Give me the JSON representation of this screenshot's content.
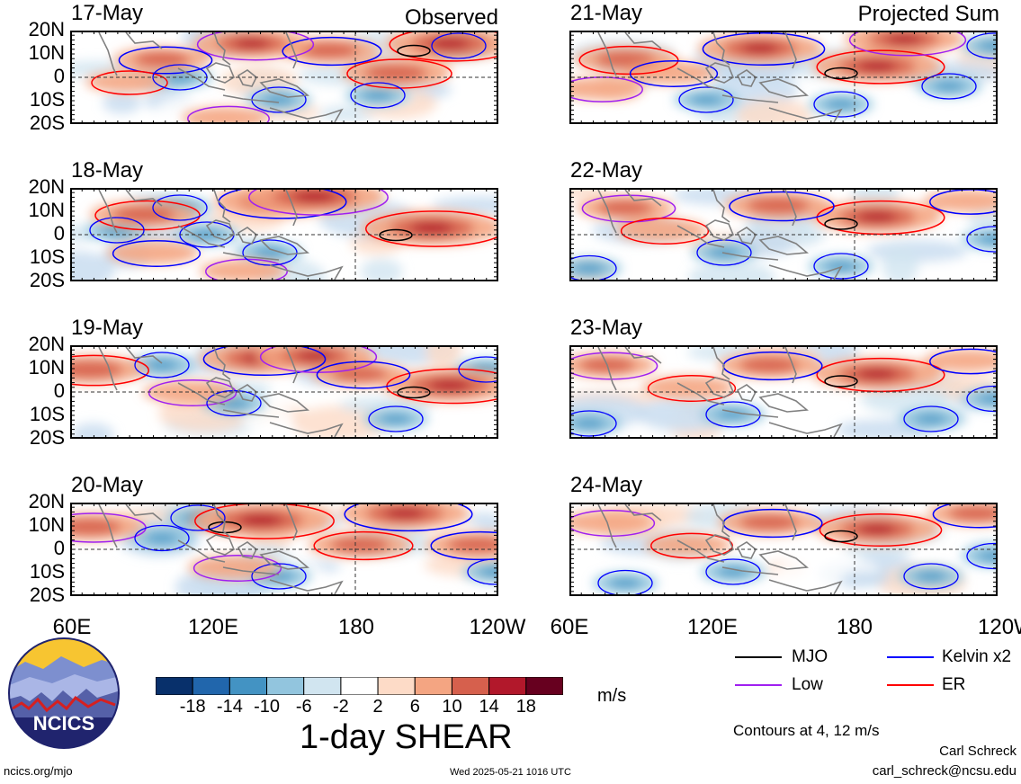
{
  "observed_label": "Observed",
  "projected_label": "Projected Sum",
  "panels": [
    {
      "date": "17-May",
      "col": 0,
      "row": 0,
      "centers": [
        [
          420,
          15,
          14
        ],
        [
          285,
          12,
          9
        ],
        [
          200,
          15,
          12
        ],
        [
          360,
          2,
          10
        ],
        [
          100,
          8,
          8
        ],
        [
          170,
          -18,
          6
        ],
        [
          60,
          -2,
          5
        ]
      ],
      "negs": [
        [
          430,
          14
        ],
        [
          120,
          0
        ],
        [
          230,
          -10
        ],
        [
          340,
          -8
        ]
      ]
    },
    {
      "date": "18-May",
      "col": 0,
      "row": 1,
      "centers": [
        [
          400,
          3,
          16
        ],
        [
          230,
          15,
          14
        ],
        [
          270,
          17,
          16
        ],
        [
          80,
          9,
          10
        ],
        [
          90,
          -8,
          7
        ],
        [
          190,
          -16,
          6
        ]
      ],
      "negs": [
        [
          120,
          12
        ],
        [
          150,
          0
        ],
        [
          220,
          -8
        ],
        [
          50,
          2
        ]
      ]
    },
    {
      "date": "19-May",
      "col": 0,
      "row": 2,
      "centers": [
        [
          420,
          3,
          15
        ],
        [
          210,
          15,
          13
        ],
        [
          270,
          16,
          12
        ],
        [
          20,
          10,
          11
        ],
        [
          320,
          8,
          8
        ],
        [
          130,
          0,
          7
        ]
      ],
      "negs": [
        [
          100,
          12
        ],
        [
          180,
          -5
        ],
        [
          360,
          -12
        ],
        [
          460,
          10
        ]
      ]
    },
    {
      "date": "20-May",
      "col": 0,
      "row": 3,
      "centers": [
        [
          210,
          13,
          16
        ],
        [
          370,
          16,
          14
        ],
        [
          20,
          10,
          10
        ],
        [
          320,
          2,
          9
        ],
        [
          450,
          2,
          9
        ],
        [
          180,
          -8,
          7
        ]
      ],
      "negs": [
        [
          100,
          5
        ],
        [
          230,
          -12
        ],
        [
          470,
          -10
        ],
        [
          140,
          14
        ]
      ]
    },
    {
      "date": "21-May",
      "col": 1,
      "row": 0,
      "centers": [
        [
          340,
          5,
          14
        ],
        [
          210,
          13,
          13
        ],
        [
          370,
          17,
          12
        ],
        [
          60,
          8,
          9
        ],
        [
          110,
          2,
          7
        ],
        [
          30,
          -5,
          6
        ]
      ],
      "negs": [
        [
          150,
          -10
        ],
        [
          300,
          -12
        ],
        [
          470,
          14
        ],
        [
          420,
          -4
        ]
      ]
    },
    {
      "date": "22-May",
      "col": 1,
      "row": 1,
      "centers": [
        [
          340,
          8,
          14
        ],
        [
          230,
          13,
          10
        ],
        [
          60,
          12,
          8
        ],
        [
          100,
          2,
          7
        ],
        [
          440,
          15,
          6
        ]
      ],
      "negs": [
        [
          170,
          -8
        ],
        [
          300,
          -14
        ],
        [
          470,
          -2
        ],
        [
          20,
          -15
        ]
      ]
    },
    {
      "date": "23-May",
      "col": 1,
      "row": 2,
      "centers": [
        [
          340,
          8,
          14
        ],
        [
          220,
          12,
          9
        ],
        [
          40,
          12,
          8
        ],
        [
          130,
          2,
          7
        ],
        [
          440,
          14,
          6
        ]
      ],
      "negs": [
        [
          180,
          -10
        ],
        [
          400,
          -12
        ],
        [
          470,
          -3
        ],
        [
          20,
          -14
        ]
      ]
    },
    {
      "date": "24-May",
      "col": 1,
      "row": 3,
      "centers": [
        [
          340,
          9,
          13
        ],
        [
          220,
          12,
          9
        ],
        [
          40,
          12,
          7
        ],
        [
          130,
          2,
          6
        ],
        [
          450,
          16,
          8
        ]
      ],
      "negs": [
        [
          180,
          -10
        ],
        [
          400,
          -12
        ],
        [
          470,
          -3
        ],
        [
          60,
          -15
        ]
      ]
    }
  ],
  "lat_labels": [
    "20N",
    "10N",
    "0",
    "10S",
    "20S"
  ],
  "lon_labels": [
    "60E",
    "120E",
    "180",
    "120W"
  ],
  "colorbar": {
    "colors": [
      "#08306b",
      "#2166ac",
      "#4393c3",
      "#92c5de",
      "#d1e5f0",
      "#ffffff",
      "#fddbc7",
      "#f4a582",
      "#d6604d",
      "#b2182b",
      "#67001f"
    ],
    "labels": [
      "-18",
      "-14",
      "-10",
      "-6",
      "-2",
      "2",
      "6",
      "10",
      "14",
      "18"
    ],
    "units": "m/s",
    "title": "1-day SHEAR"
  },
  "legend": {
    "items": [
      {
        "label": "MJO",
        "color": "#000000"
      },
      {
        "label": "Kelvin x2",
        "color": "#0000ff"
      },
      {
        "label": "Low",
        "color": "#a020f0"
      },
      {
        "label": "ER",
        "color": "#ff0000"
      }
    ],
    "contours_note": "Contours at 4, 12 m/s"
  },
  "logo_text": "NCICS",
  "footer": {
    "website": "ncics.org/mjo",
    "timestamp": "Wed 2025-05-21 1016 UTC",
    "author": "Carl Schreck",
    "email": "carl_schreck@ncsu.edu"
  }
}
